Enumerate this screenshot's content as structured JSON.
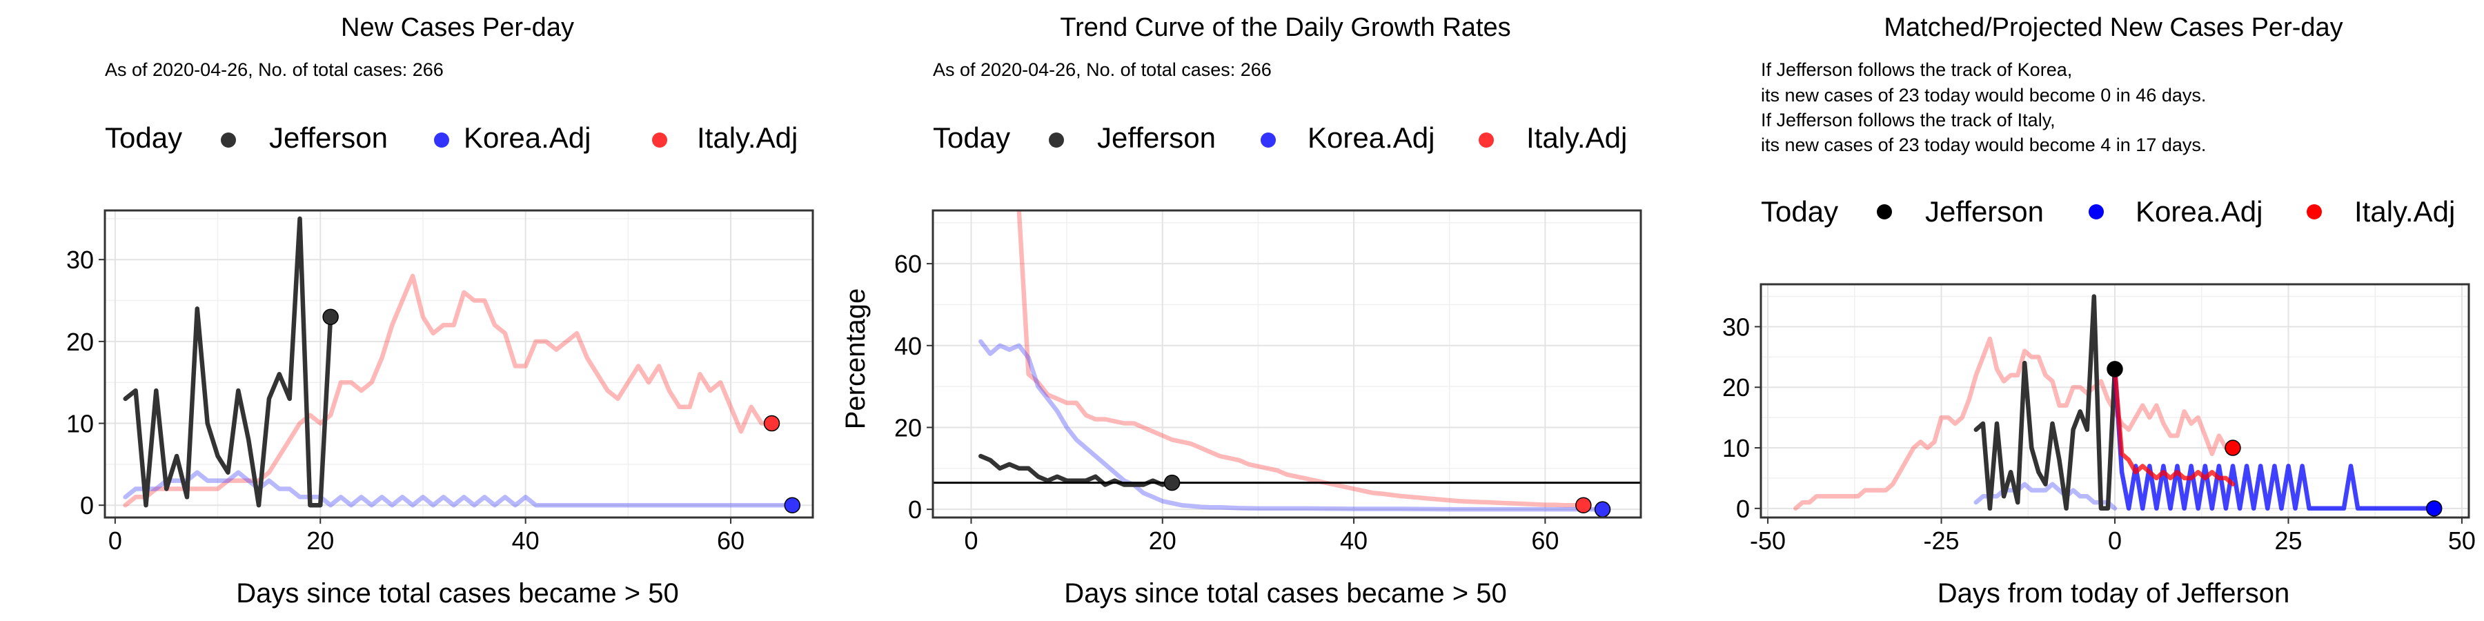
{
  "legend": {
    "today": "Today",
    "items": [
      {
        "label": "Jefferson",
        "color": "#333333"
      },
      {
        "label": "Korea.Adj",
        "color": "#3333ff"
      },
      {
        "label": "Italy.Adj",
        "color": "#ff3333"
      }
    ],
    "items_solid": [
      {
        "label": "Jefferson",
        "color": "#000000"
      },
      {
        "label": "Korea.Adj",
        "color": "#0000ff"
      },
      {
        "label": "Italy.Adj",
        "color": "#ff0000"
      }
    ]
  },
  "chart_data": [
    {
      "type": "line",
      "title": "New Cases Per-day",
      "subtitle": "As of 2020-04-26, No. of total cases: 266",
      "xlabel": "Days since total cases became > 50",
      "ylabel": "",
      "xlim": [
        -1,
        68
      ],
      "ylim": [
        -1.5,
        36
      ],
      "xticks": [
        0,
        20,
        40,
        60
      ],
      "yticks": [
        0,
        10,
        20,
        30
      ],
      "grid": true,
      "legend_position": "top",
      "series": [
        {
          "name": "Italy.Adj",
          "color": "#ff3333",
          "opacity": 0.35,
          "x": [
            1,
            2,
            3,
            4,
            5,
            6,
            7,
            8,
            9,
            10,
            11,
            12,
            13,
            14,
            15,
            16,
            17,
            18,
            19,
            20,
            21,
            22,
            23,
            24,
            25,
            26,
            27,
            28,
            29,
            30,
            31,
            32,
            33,
            34,
            35,
            36,
            37,
            38,
            39,
            40,
            41,
            42,
            43,
            44,
            45,
            46,
            47,
            48,
            49,
            50,
            51,
            52,
            53,
            54,
            55,
            56,
            57,
            58,
            59,
            60,
            61,
            62,
            63,
            64
          ],
          "y": [
            0,
            1,
            1,
            2,
            2,
            2,
            2,
            2,
            2,
            2,
            3,
            3,
            3,
            3,
            4,
            6,
            8,
            10,
            11,
            10,
            11,
            15,
            15,
            14,
            15,
            18,
            22,
            25,
            28,
            23,
            21,
            22,
            22,
            26,
            25,
            25,
            22,
            21,
            17,
            17,
            20,
            20,
            19,
            20,
            21,
            18,
            16,
            14,
            13,
            15,
            17,
            15,
            17,
            14,
            12,
            12,
            16,
            14,
            15,
            12,
            9,
            12,
            10,
            10
          ]
        },
        {
          "name": "Korea.Adj",
          "color": "#3333ff",
          "opacity": 0.35,
          "x": [
            1,
            2,
            3,
            4,
            5,
            6,
            7,
            8,
            9,
            10,
            11,
            12,
            13,
            14,
            15,
            16,
            17,
            18,
            19,
            20,
            21,
            22,
            23,
            24,
            25,
            26,
            27,
            28,
            29,
            30,
            31,
            32,
            33,
            34,
            35,
            36,
            37,
            38,
            39,
            40,
            41,
            42,
            43,
            44,
            45,
            46,
            47,
            48,
            49,
            50,
            51,
            52,
            53,
            54,
            55,
            56,
            57,
            58,
            59,
            60,
            61,
            62,
            63,
            64,
            65,
            66
          ],
          "y": [
            1,
            2,
            2,
            2,
            3,
            3,
            3,
            4,
            3,
            3,
            3,
            4,
            3,
            2,
            3,
            2,
            2,
            1,
            1,
            1,
            0,
            1,
            0,
            1,
            0,
            1,
            0,
            1,
            0,
            1,
            0,
            1,
            0,
            1,
            0,
            1,
            0,
            1,
            0,
            1,
            0,
            0,
            0,
            0,
            0,
            0,
            0,
            0,
            0,
            0,
            0,
            0,
            0,
            0,
            0,
            0,
            0,
            0,
            0,
            0,
            0,
            0,
            0,
            0,
            0,
            0
          ]
        },
        {
          "name": "Jefferson",
          "color": "#333333",
          "opacity": 1,
          "x": [
            1,
            2,
            3,
            4,
            5,
            6,
            7,
            8,
            9,
            10,
            11,
            12,
            13,
            14,
            15,
            16,
            17,
            18,
            19,
            20,
            21
          ],
          "y": [
            13,
            14,
            0,
            14,
            2,
            6,
            1,
            24,
            10,
            6,
            4,
            14,
            8,
            0,
            13,
            16,
            13,
            35,
            0,
            0,
            23
          ]
        }
      ],
      "today_points": [
        {
          "series": "Jefferson",
          "x": 21,
          "y": 23
        },
        {
          "series": "Korea.Adj",
          "x": 66,
          "y": 0
        },
        {
          "series": "Italy.Adj",
          "x": 64,
          "y": 10
        }
      ]
    },
    {
      "type": "line",
      "title": "Trend Curve of the Daily Growth Rates",
      "subtitle": "As of 2020-04-26, No. of total cases: 266",
      "xlabel": "Days since total cases became > 50",
      "ylabel": "Percentage",
      "xlim": [
        -4,
        70
      ],
      "ylim": [
        -2,
        73
      ],
      "xticks": [
        0,
        20,
        40,
        60
      ],
      "yticks": [
        0,
        20,
        40,
        60
      ],
      "hline": 6.5,
      "grid": true,
      "legend_position": "top",
      "series": [
        {
          "name": "Italy.Adj",
          "color": "#ff3333",
          "opacity": 0.35,
          "x": [
            5,
            6,
            7,
            8,
            9,
            10,
            11,
            12,
            13,
            14,
            15,
            16,
            17,
            18,
            19,
            20,
            21,
            22,
            23,
            24,
            25,
            26,
            27,
            28,
            29,
            30,
            31,
            32,
            33,
            34,
            35,
            36,
            37,
            38,
            39,
            40,
            41,
            42,
            43,
            44,
            45,
            46,
            47,
            48,
            49,
            50,
            51,
            52,
            53,
            54,
            55,
            56,
            57,
            58,
            59,
            60,
            61,
            62,
            63,
            64
          ],
          "y": [
            73,
            33,
            31,
            28,
            27,
            26,
            26,
            23,
            22,
            22,
            21.5,
            21,
            21,
            20,
            19,
            18,
            17,
            16.5,
            16,
            15,
            14,
            13,
            12.5,
            12,
            11,
            10.5,
            10,
            9.5,
            8.5,
            8,
            7.5,
            7,
            6.5,
            6,
            5.5,
            5,
            4.5,
            4,
            3.8,
            3.5,
            3.2,
            3,
            2.8,
            2.6,
            2.4,
            2.2,
            2,
            1.9,
            1.8,
            1.7,
            1.6,
            1.5,
            1.4,
            1.3,
            1.2,
            1.1,
            1.1,
            1,
            1,
            1
          ]
        },
        {
          "name": "Korea.Adj",
          "color": "#3333ff",
          "opacity": 0.35,
          "x": [
            1,
            2,
            3,
            4,
            5,
            6,
            7,
            8,
            9,
            10,
            11,
            12,
            13,
            14,
            15,
            16,
            17,
            18,
            19,
            20,
            21,
            22,
            23,
            24,
            25,
            26,
            28,
            30,
            35,
            40,
            45,
            50,
            55,
            60,
            66
          ],
          "y": [
            41,
            38,
            40,
            39,
            40,
            37,
            30,
            27,
            24,
            20,
            17,
            15,
            13,
            11,
            9,
            7,
            6,
            4,
            3,
            2,
            1.5,
            1,
            0.8,
            0.6,
            0.5,
            0.5,
            0.3,
            0.2,
            0.2,
            0.1,
            0.1,
            0,
            0,
            0,
            0
          ]
        },
        {
          "name": "Jefferson",
          "color": "#333333",
          "opacity": 1,
          "x": [
            1,
            2,
            3,
            4,
            5,
            6,
            7,
            8,
            9,
            10,
            11,
            12,
            13,
            14,
            15,
            16,
            17,
            18,
            19,
            20,
            21
          ],
          "y": [
            13,
            12,
            10,
            11,
            10,
            10,
            8,
            7,
            8,
            7,
            7,
            7,
            8,
            6,
            7,
            6,
            6,
            6,
            7,
            6,
            6.5
          ]
        }
      ],
      "today_points": [
        {
          "series": "Jefferson",
          "x": 21,
          "y": 6.5
        },
        {
          "series": "Korea.Adj",
          "x": 66,
          "y": 0
        },
        {
          "series": "Italy.Adj",
          "x": 64,
          "y": 1
        }
      ]
    },
    {
      "type": "line",
      "title": "Matched/Projected New Cases Per-day",
      "subtitle_lines": [
        "If Jefferson follows the track of Korea,",
        "its new cases of 23 today would become 0 in 46 days.",
        "If Jefferson follows the track of Italy,",
        "its new cases of 23 today would become 4 in 17 days."
      ],
      "xlabel": "Days from today of Jefferson",
      "ylabel": "",
      "xlim": [
        -51,
        51
      ],
      "ylim": [
        -1.5,
        37
      ],
      "xticks": [
        -50,
        -25,
        0,
        25,
        50
      ],
      "yticks": [
        0,
        10,
        20,
        30
      ],
      "grid": true,
      "legend_position": "top",
      "series": [
        {
          "name": "Italy.Adj (matched)",
          "color": "#ff3333",
          "opacity": 0.35,
          "x": [
            -46,
            -45,
            -44,
            -43,
            -42,
            -41,
            -40,
            -39,
            -38,
            -37,
            -36,
            -35,
            -34,
            -33,
            -32,
            -31,
            -30,
            -29,
            -28,
            -27,
            -26,
            -25,
            -24,
            -23,
            -22,
            -21,
            -20,
            -19,
            -18,
            -17,
            -16,
            -15,
            -14,
            -13,
            -12,
            -11,
            -10,
            -9,
            -8,
            -7,
            -6,
            -5,
            -4,
            -3,
            -2,
            -1,
            0,
            1,
            2,
            3,
            4,
            5,
            6,
            7,
            8,
            9,
            10,
            11,
            12,
            13,
            14,
            15,
            16,
            17
          ],
          "y": [
            0,
            1,
            1,
            2,
            2,
            2,
            2,
            2,
            2,
            2,
            3,
            3,
            3,
            3,
            4,
            6,
            8,
            10,
            11,
            10,
            11,
            15,
            15,
            14,
            15,
            18,
            22,
            25,
            28,
            23,
            21,
            22,
            22,
            26,
            25,
            25,
            22,
            21,
            17,
            17,
            20,
            20,
            19,
            20,
            21,
            18,
            16,
            14,
            13,
            15,
            17,
            15,
            17,
            14,
            12,
            12,
            16,
            14,
            15,
            12,
            9,
            12,
            10,
            10
          ]
        },
        {
          "name": "Korea.Adj (matched)",
          "color": "#3333ff",
          "opacity": 0.35,
          "x": [
            -20,
            -19,
            -18,
            -17,
            -16,
            -15,
            -14,
            -13,
            -12,
            -11,
            -10,
            -9,
            -8,
            -7,
            -6,
            -5,
            -4,
            -3,
            -2,
            -1,
            0
          ],
          "y": [
            1,
            2,
            2,
            2,
            3,
            3,
            3,
            4,
            3,
            3,
            3,
            4,
            3,
            2,
            3,
            2,
            2,
            1,
            1,
            1,
            0
          ]
        },
        {
          "name": "Jefferson",
          "color": "#333333",
          "opacity": 1,
          "x": [
            -20,
            -19,
            -18,
            -17,
            -16,
            -15,
            -14,
            -13,
            -12,
            -11,
            -10,
            -9,
            -8,
            -7,
            -6,
            -5,
            -4,
            -3,
            -2,
            -1,
            0
          ],
          "y": [
            13,
            14,
            0,
            14,
            2,
            6,
            1,
            24,
            10,
            6,
            4,
            14,
            8,
            0,
            13,
            16,
            13,
            35,
            0,
            0,
            23
          ]
        },
        {
          "name": "Korea.Adj (projected)",
          "color": "#0000ff",
          "opacity": 0.75,
          "x": [
            0,
            1,
            2,
            3,
            4,
            5,
            6,
            7,
            8,
            9,
            10,
            11,
            12,
            13,
            14,
            15,
            16,
            17,
            18,
            19,
            20,
            21,
            22,
            23,
            24,
            25,
            26,
            27,
            28,
            29,
            30,
            31,
            32,
            33,
            34,
            35,
            36,
            37,
            38,
            39,
            40,
            41,
            42,
            43,
            44,
            45,
            46
          ],
          "y": [
            23,
            6,
            0,
            7,
            0,
            7,
            0,
            7,
            0,
            7,
            0,
            7,
            0,
            7,
            0,
            7,
            0,
            7,
            0,
            7,
            0,
            7,
            0,
            7,
            0,
            7,
            0,
            7,
            0,
            0,
            0,
            0,
            0,
            0,
            7,
            0,
            0,
            0,
            0,
            0,
            0,
            0,
            0,
            0,
            0,
            0,
            0
          ]
        },
        {
          "name": "Italy.Adj (projected)",
          "color": "#ff0000",
          "opacity": 0.75,
          "x": [
            0,
            1,
            2,
            3,
            4,
            5,
            6,
            7,
            8,
            9,
            10,
            11,
            12,
            13,
            14,
            15,
            16,
            17
          ],
          "y": [
            23,
            9,
            8,
            6,
            7,
            6,
            5,
            6,
            5,
            6,
            5,
            5,
            6,
            5,
            6,
            5,
            5,
            4
          ]
        }
      ],
      "today_points": [
        {
          "series": "Jefferson",
          "x": 0,
          "y": 23
        },
        {
          "series": "Korea.Adj",
          "x": 46,
          "y": 0
        },
        {
          "series": "Italy.Adj",
          "x": 17,
          "y": 10
        }
      ]
    }
  ]
}
